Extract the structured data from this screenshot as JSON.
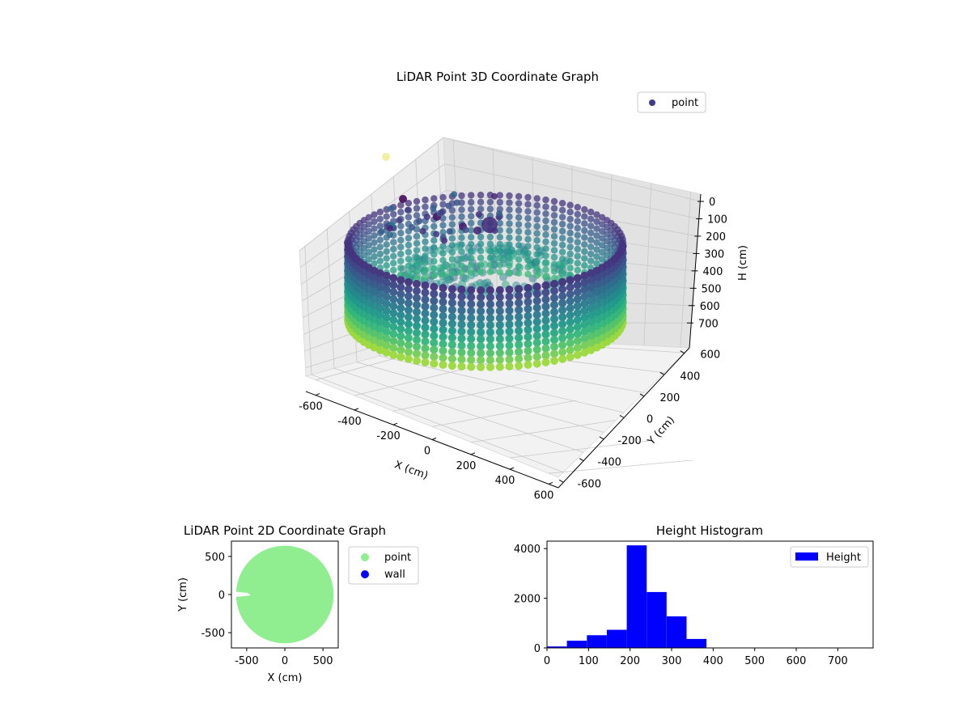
{
  "chart_data": [
    {
      "type": "scatter",
      "projection": "3d",
      "title": "LiDAR Point 3D Coordinate Graph",
      "xlabel": "X (cm)",
      "ylabel": "Y (cm)",
      "zlabel": "H (cm)",
      "xlim": [
        -650,
        650
      ],
      "ylim": [
        -650,
        650
      ],
      "zlim": [
        750,
        0
      ],
      "z_inverted": true,
      "xticks": [
        -600,
        -400,
        -200,
        0,
        200,
        400,
        600
      ],
      "yticks": [
        -600,
        -400,
        -200,
        0,
        200,
        400,
        600
      ],
      "zticks": [
        0,
        100,
        200,
        300,
        400,
        500,
        600,
        700
      ],
      "grid": true,
      "legend": {
        "position": "top-right",
        "entries": [
          "point"
        ]
      },
      "colormap": "viridis",
      "series": [
        {
          "name": "point",
          "shape": "ring wall",
          "radius_cm": 650,
          "h_range": [
            200,
            390
          ],
          "color": "#3b528b"
        },
        {
          "name": "point",
          "shape": "scattered cluster",
          "points": [
            {
              "x": -250,
              "y": 150,
              "h": 60
            },
            {
              "x": -150,
              "y": 60,
              "h": 80
            },
            {
              "x": -80,
              "y": 20,
              "h": 90
            },
            {
              "x": -50,
              "y": 0,
              "h": 100
            },
            {
              "x": 0,
              "y": 0,
              "h": 120
            },
            {
              "x": -620,
              "y": 650,
              "h": -190
            }
          ]
        }
      ]
    },
    {
      "type": "scatter",
      "title": "LiDAR Point 2D Coordinate Graph",
      "xlabel": "X (cm)",
      "ylabel": "Y (cm)",
      "xlim": [
        -700,
        700
      ],
      "ylim": [
        -700,
        700
      ],
      "xticks": [
        -500,
        0,
        500
      ],
      "yticks": [
        -500,
        0,
        500
      ],
      "legend": {
        "position": "outside right",
        "entries": [
          "point",
          "wall"
        ]
      },
      "series": [
        {
          "name": "point",
          "color": "#90ee90",
          "shape": "filled disk",
          "radius_cm": 640
        },
        {
          "name": "wall",
          "color": "#0000ff"
        }
      ]
    },
    {
      "type": "bar",
      "title": "Height Histogram",
      "xlim": [
        0,
        785
      ],
      "ylim": [
        0,
        4300
      ],
      "xticks": [
        0,
        100,
        200,
        300,
        400,
        500,
        600,
        700
      ],
      "yticks": [
        0,
        2000,
        4000
      ],
      "legend": {
        "position": "top-right",
        "entries": [
          "Height"
        ]
      },
      "bar_color": "#0000ff",
      "bin_edges": [
        0,
        48,
        96,
        144,
        192,
        240,
        288,
        336,
        384,
        432,
        480,
        528,
        576,
        624,
        672,
        720,
        768
      ],
      "series": [
        {
          "name": "Height",
          "values": [
            60,
            290,
            510,
            730,
            4130,
            2250,
            1270,
            360,
            0,
            0,
            0,
            0,
            0,
            0,
            0,
            4
          ]
        }
      ]
    }
  ]
}
